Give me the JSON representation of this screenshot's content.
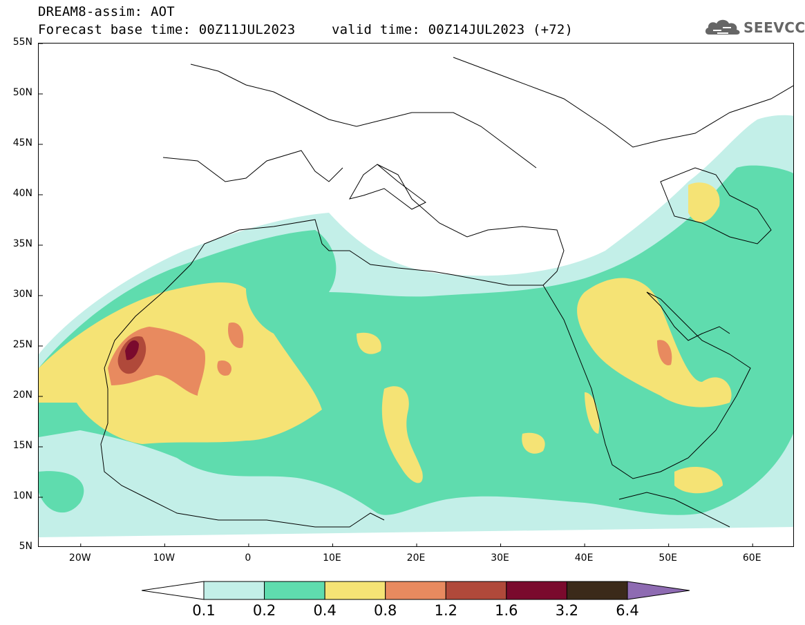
{
  "header": {
    "title_line": "DREAM8-assim: AOT",
    "base_time": "Forecast base time: 00Z11JUL2023",
    "valid_time": "valid time: 00Z14JUL2023 (+72)"
  },
  "logo": {
    "text": "SEEVCCC",
    "icon": "cloud-icon"
  },
  "map": {
    "projection": "lat-lon",
    "lon_range": [
      -25,
      65
    ],
    "lat_range": [
      5,
      55
    ],
    "lat_labels": [
      "55N",
      "50N",
      "45N",
      "40N",
      "35N",
      "30N",
      "25N",
      "20N",
      "15N",
      "10N",
      "5N"
    ],
    "lon_labels": [
      "20W",
      "10W",
      "0",
      "10E",
      "20E",
      "30E",
      "40E",
      "50E",
      "60E"
    ]
  },
  "colorbar": {
    "labels": [
      "0.1",
      "0.2",
      "0.4",
      "0.8",
      "1.2",
      "1.6",
      "3.2",
      "6.4"
    ],
    "colors": [
      "#c3efe8",
      "#5fdcae",
      "#f5e375",
      "#e88a5f",
      "#b0493a",
      "#7a0a2d",
      "#3b2a1a",
      "#8e6bb2"
    ],
    "under_color": "#ffffff"
  }
}
